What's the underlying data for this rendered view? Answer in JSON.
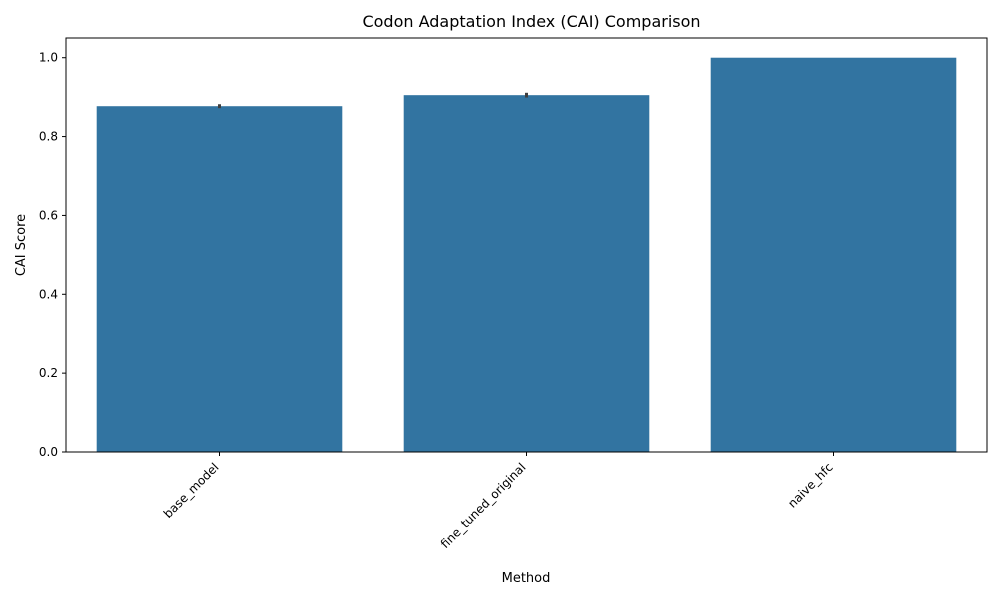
{
  "chart_data": {
    "type": "bar",
    "title": "Codon Adaptation Index (CAI) Comparison",
    "xlabel": "Method",
    "ylabel": "CAI Score",
    "categories": [
      "base_model",
      "fine_tuned_original",
      "naive_hfc"
    ],
    "values": [
      0.877,
      0.905,
      1.0
    ],
    "error": [
      [
        0.872,
        0.882
      ],
      [
        0.899,
        0.911
      ],
      [
        1.0,
        1.0
      ]
    ],
    "ylim": [
      0,
      1.05
    ],
    "yticks": [
      "0.0",
      "0.2",
      "0.4",
      "0.6",
      "0.8",
      "1.0"
    ],
    "bar_color": "#3274a1",
    "error_color": "#3f3f3f",
    "grid": false,
    "x_tick_rotation_deg": 45
  }
}
